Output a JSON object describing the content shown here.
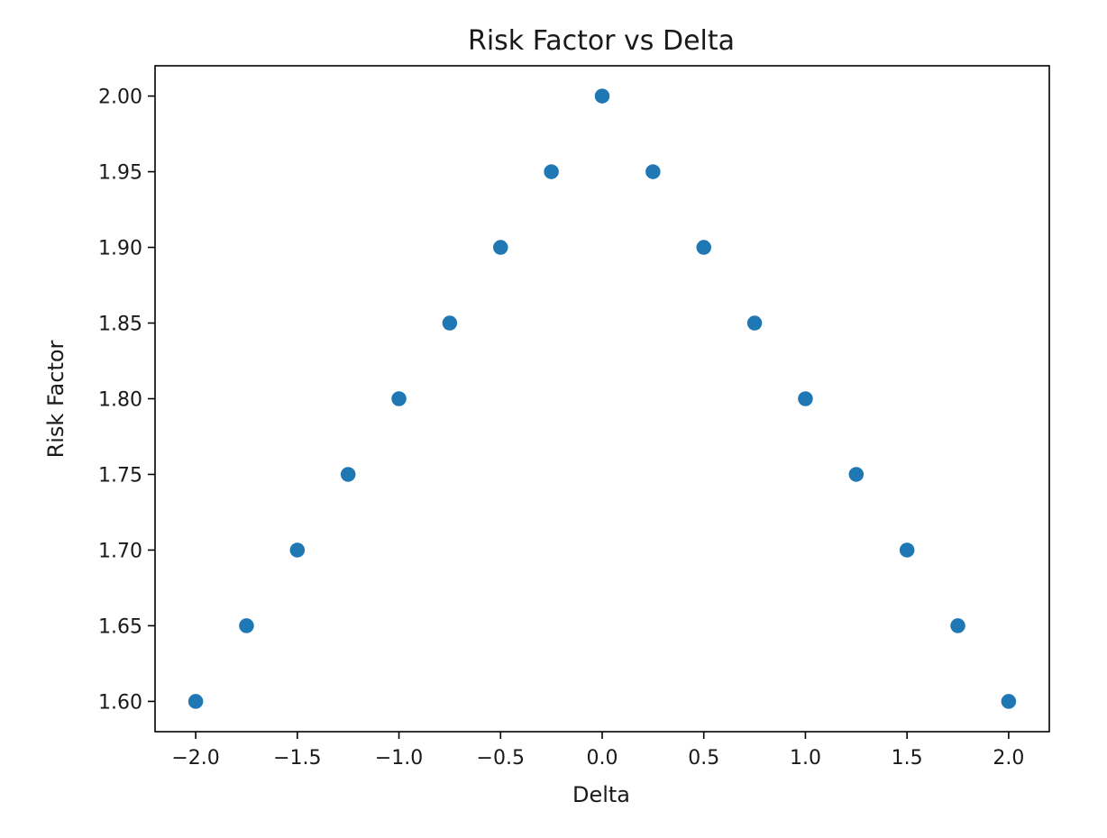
{
  "chart_data": {
    "type": "scatter",
    "title": "Risk Factor vs Delta",
    "xlabel": "Delta",
    "ylabel": "Risk Factor",
    "xlim": [
      -2.2,
      2.2
    ],
    "ylim": [
      1.58,
      2.02
    ],
    "x_ticks": [
      -2.0,
      -1.5,
      -1.0,
      -0.5,
      0.0,
      0.5,
      1.0,
      1.5,
      2.0
    ],
    "x_tick_labels": [
      "−2.0",
      "−1.5",
      "−1.0",
      "−0.5",
      "0.0",
      "0.5",
      "1.0",
      "1.5",
      "2.0"
    ],
    "y_ticks": [
      1.6,
      1.65,
      1.7,
      1.75,
      1.8,
      1.85,
      1.9,
      1.95,
      2.0
    ],
    "y_tick_labels": [
      "1.60",
      "1.65",
      "1.70",
      "1.75",
      "1.80",
      "1.85",
      "1.90",
      "1.95",
      "2.00"
    ],
    "grid": false,
    "marker_color": "#1f77b4",
    "series": [
      {
        "x": [
          -2.0,
          -1.75,
          -1.5,
          -1.25,
          -1.0,
          -0.75,
          -0.5,
          -0.25,
          0.0,
          0.25,
          0.5,
          0.75,
          1.0,
          1.25,
          1.5,
          1.75,
          2.0
        ],
        "y": [
          1.6,
          1.65,
          1.7,
          1.75,
          1.8,
          1.85,
          1.9,
          1.95,
          2.0,
          1.95,
          1.9,
          1.85,
          1.8,
          1.75,
          1.7,
          1.65,
          1.6
        ]
      }
    ]
  }
}
